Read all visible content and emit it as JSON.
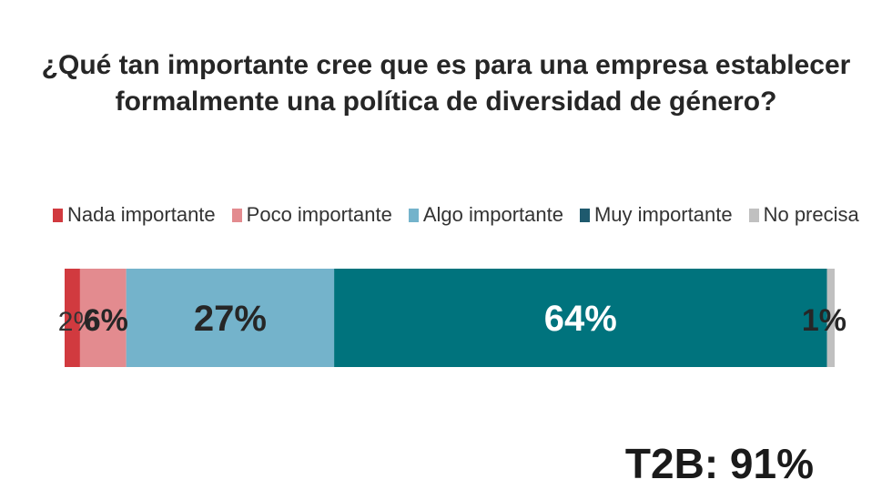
{
  "chart_data": {
    "type": "bar",
    "orientation": "horizontal-stacked",
    "title_lines": [
      "¿Qué tan importante cree que es para una empresa establecer",
      "formalmente una política de diversidad de género?"
    ],
    "series": [
      {
        "name": "Nada importante",
        "value": 2,
        "label": "2%",
        "color": "#d13a3f",
        "label_color": "#333333"
      },
      {
        "name": "Poco importante",
        "value": 6,
        "label": "6%",
        "color": "#e38b8f",
        "label_color": "#262626"
      },
      {
        "name": "Algo importante",
        "value": 27,
        "label": "27%",
        "color": "#74b3cb",
        "label_color": "#262626"
      },
      {
        "name": "Muy importante",
        "value": 64,
        "label": "64%",
        "color": "#00737d",
        "label_color": "#ffffff"
      },
      {
        "name": "No precisa",
        "value": 1,
        "label": "1%",
        "color": "#c0c0c0",
        "label_color": "#262626"
      }
    ],
    "legend_position": "top",
    "xlim": [
      0,
      100
    ],
    "grid": false
  },
  "footer": {
    "t2b": "T2B: 91%"
  },
  "colors": {
    "muy_legend_swatch": "#1f5a6e"
  }
}
